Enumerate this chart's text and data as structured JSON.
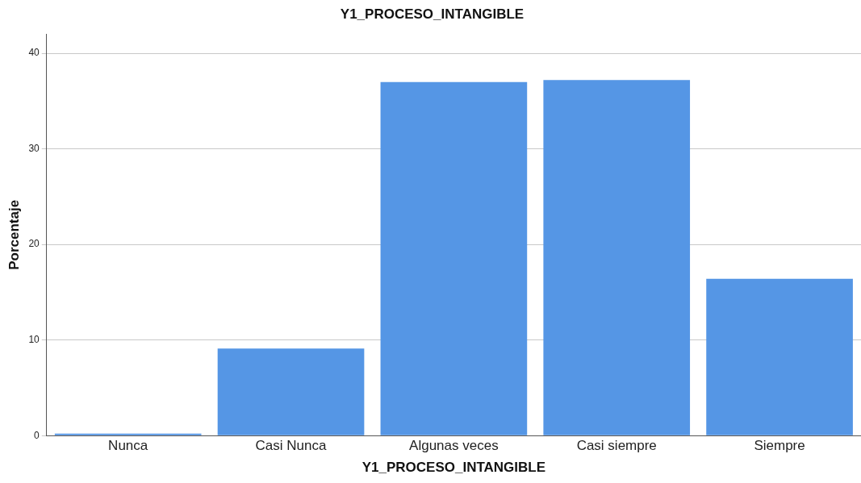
{
  "chart_data": {
    "type": "bar",
    "title": "Y1_PROCESO_INTANGIBLE",
    "xlabel": "Y1_PROCESO_INTANGIBLE",
    "ylabel": "Porcentaje",
    "categories": [
      "Nunca",
      "Casi Nunca",
      "Algunas veces",
      "Casi siempre",
      "Siempre"
    ],
    "values": [
      0.2,
      9.1,
      37.0,
      37.2,
      16.4
    ],
    "color": "#5596e5",
    "ylim": [
      0,
      42
    ],
    "yticks": [
      0,
      10,
      20,
      30,
      40
    ],
    "grid": "y",
    "legend": false
  }
}
